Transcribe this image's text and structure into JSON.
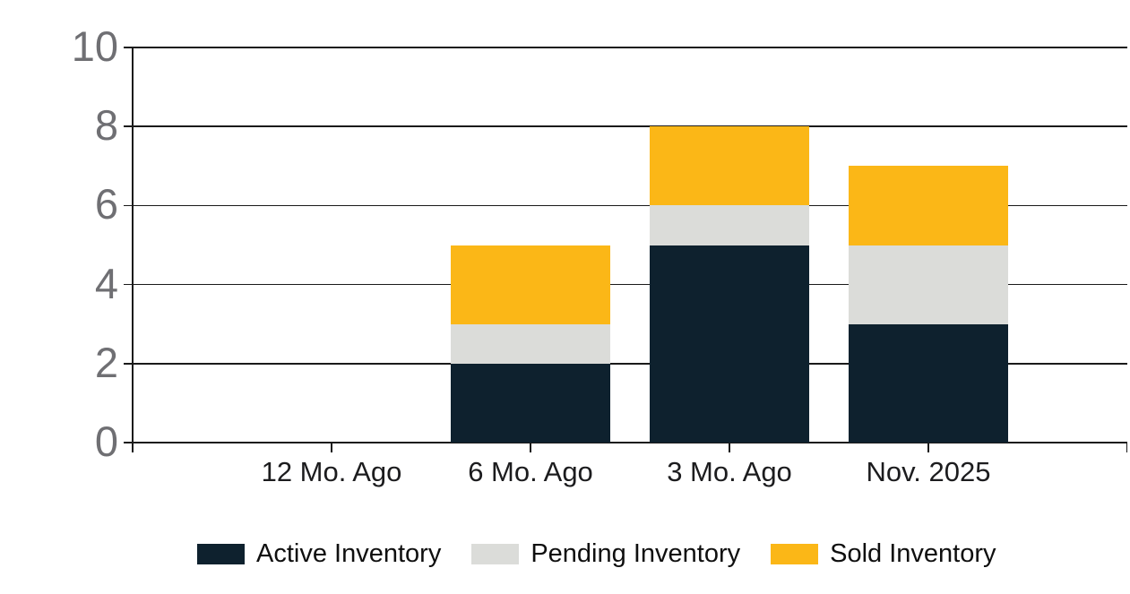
{
  "chart_data": {
    "type": "bar",
    "stacked": true,
    "title": "",
    "xlabel": "",
    "ylabel": "",
    "categories": [
      "12 Mo. Ago",
      "6 Mo. Ago",
      "3 Mo. Ago",
      "Nov. 2025"
    ],
    "series": [
      {
        "name": "Active Inventory",
        "color": "#0e212e",
        "values": [
          0,
          2,
          5,
          3
        ]
      },
      {
        "name": "Pending Inventory",
        "color": "#dbdcd9",
        "values": [
          0,
          1,
          1,
          2
        ]
      },
      {
        "name": "Sold Inventory",
        "color": "#fbb717",
        "values": [
          0,
          2,
          2,
          2
        ]
      }
    ],
    "totals": [
      0,
      5,
      8,
      7
    ],
    "yticks": [
      0,
      2,
      4,
      6,
      8,
      10
    ],
    "ylim": [
      0,
      10
    ],
    "grid": true,
    "legend_position": "bottom"
  },
  "colors": {
    "background": "#ffffff",
    "grid_line": "#1a1a1a",
    "axis_line": "#1a1a1a",
    "y_tick_label": "#6f6f73",
    "x_tick_label": "#1c1c1e",
    "legend_text": "#0f0f0f"
  }
}
